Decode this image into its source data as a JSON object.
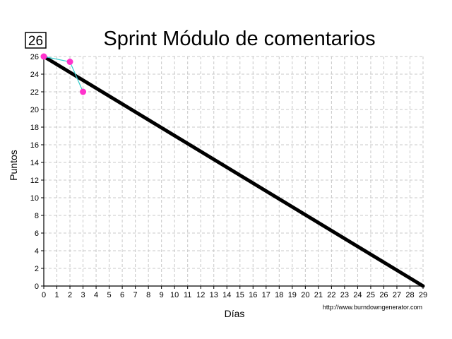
{
  "chart_data": {
    "type": "line",
    "title": "Sprint Módulo de comentarios",
    "xlabel": "Días",
    "ylabel": "Puntos",
    "xlim": [
      0,
      29
    ],
    "ylim": [
      0,
      26
    ],
    "x_ticks": [
      0,
      1,
      2,
      3,
      4,
      5,
      6,
      7,
      8,
      9,
      10,
      11,
      12,
      13,
      14,
      15,
      16,
      17,
      18,
      19,
      20,
      21,
      22,
      23,
      24,
      25,
      26,
      27,
      28,
      29
    ],
    "y_ticks": [
      0,
      2,
      4,
      6,
      8,
      10,
      12,
      14,
      16,
      18,
      20,
      22,
      24,
      26
    ],
    "grid": true,
    "total_points_badge": "26",
    "credit": "http://www.burndowngenerator.com",
    "ideal": {
      "color": "#000000",
      "points": [
        {
          "x": 0,
          "y": 26
        },
        {
          "x": 29,
          "y": 0
        }
      ]
    },
    "actual": {
      "line_color": "#33cccc",
      "marker_color": "#ff33cc",
      "points": [
        {
          "x": 0,
          "y": 26
        },
        {
          "x": 2,
          "y": 25.4
        },
        {
          "x": 3,
          "y": 22
        }
      ]
    }
  }
}
